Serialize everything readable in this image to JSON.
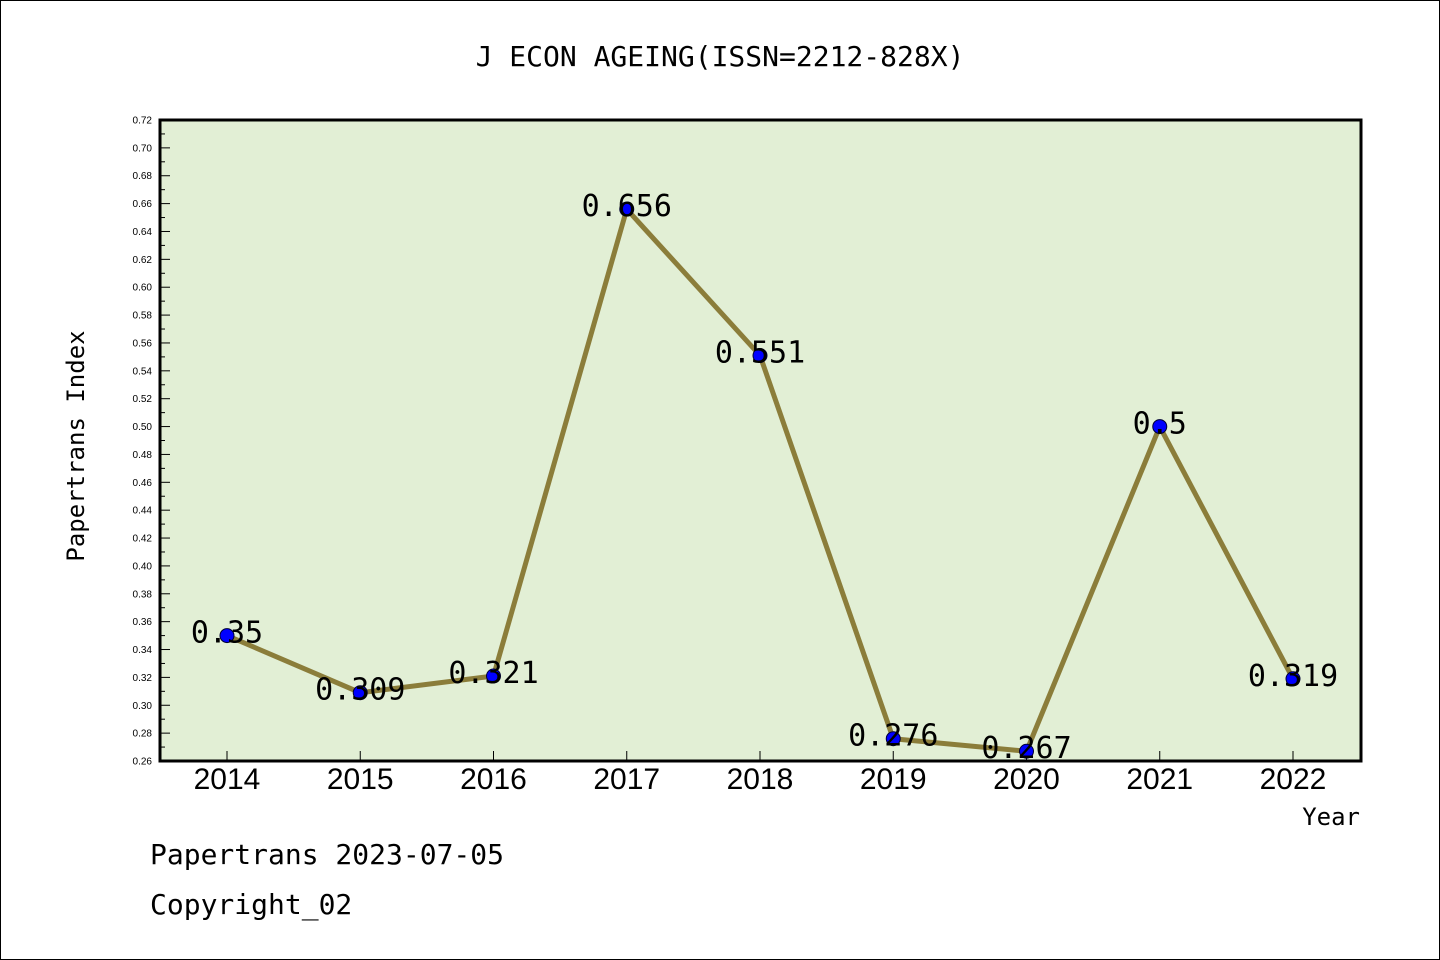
{
  "chart_data": {
    "type": "line",
    "title": "J ECON AGEING(ISSN=2212-828X)",
    "xlabel": "Year",
    "ylabel": "Papertrans Index",
    "categories": [
      "2014",
      "2015",
      "2016",
      "2017",
      "2018",
      "2019",
      "2020",
      "2021",
      "2022"
    ],
    "values": [
      0.35,
      0.309,
      0.321,
      0.656,
      0.551,
      0.276,
      0.267,
      0.5,
      0.319
    ],
    "data_labels": [
      "0.35",
      "0.309",
      "0.321",
      "0.656",
      "0.551",
      "0.276",
      "0.267",
      "0.5",
      "0.319"
    ],
    "ylim": [
      0.26,
      0.72
    ],
    "yticks": [
      "0.26",
      "0.28",
      "0.30",
      "0.32",
      "0.34",
      "0.36",
      "0.38",
      "0.40",
      "0.42",
      "0.44",
      "0.46",
      "0.48",
      "0.50",
      "0.52",
      "0.54",
      "0.56",
      "0.58",
      "0.60",
      "0.62",
      "0.64",
      "0.66",
      "0.68",
      "0.70",
      "0.72"
    ],
    "grid": false,
    "legend": "none",
    "colors": {
      "plot_bg": "#e2efd5",
      "line": "#8b7d3a",
      "marker": "#0000ff"
    }
  },
  "footer": {
    "line1": "Papertrans 2023-07-05",
    "line2": "Copyright_02"
  }
}
